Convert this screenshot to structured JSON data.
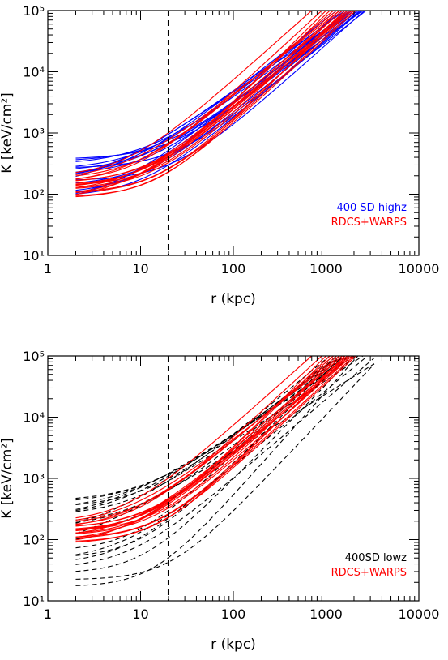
{
  "colors": {
    "blue": "#0000ff",
    "red": "#ff0000",
    "black": "#000000"
  },
  "chart_data": [
    {
      "type": "line",
      "xlabel": "r (kpc)",
      "ylabel": "K [keV/cm²]",
      "xscale": "log",
      "yscale": "log",
      "xlim": [
        1,
        10000
      ],
      "ylim": [
        10,
        100000
      ],
      "x_ticks": [
        "1",
        "10",
        "100",
        "1000",
        "10000"
      ],
      "y_ticks": [
        "10¹",
        "10²",
        "10³",
        "10⁴",
        "10⁵"
      ],
      "vline": {
        "x": 20,
        "style": "dashed",
        "color": "#000000"
      },
      "legend": {
        "position": "bottom-right",
        "entries": [
          {
            "label": "400 SD highz",
            "color": "#0000ff"
          },
          {
            "label": "RDCS+WARPS",
            "color": "#ff0000"
          }
        ]
      },
      "series": [
        {
          "group": "400 SD highz",
          "color": "#0000ff",
          "style": "solid",
          "curves": [
            {
              "k0": 370,
              "r1": 2000,
              "a": 1.25
            },
            {
              "k0": 340,
              "r1": 1900,
              "a": 1.2
            },
            {
              "k0": 300,
              "r1": 1800,
              "a": 1.15
            },
            {
              "k0": 265,
              "r1": 2400,
              "a": 1.3
            },
            {
              "k0": 250,
              "r1": 1500,
              "a": 1.2
            },
            {
              "k0": 230,
              "r1": 2200,
              "a": 1.15
            },
            {
              "k0": 205,
              "r1": 1700,
              "a": 1.25
            },
            {
              "k0": 190,
              "r1": 2500,
              "a": 1.1
            },
            {
              "k0": 175,
              "r1": 1300,
              "a": 1.2
            },
            {
              "k0": 165,
              "r1": 2600,
              "a": 1.35
            },
            {
              "k0": 150,
              "r1": 1600,
              "a": 1.1
            },
            {
              "k0": 135,
              "r1": 2700,
              "a": 1.2
            },
            {
              "k0": 120,
              "r1": 1900,
              "a": 1.05
            },
            {
              "k0": 100,
              "r1": 2200,
              "a": 1.25
            },
            {
              "k0": 90,
              "r1": 2300,
              "a": 1.3
            },
            {
              "k0": 75,
              "r1": 2400,
              "a": 1.15
            },
            {
              "k0": 70,
              "r1": 1800,
              "a": 1.2
            }
          ]
        },
        {
          "group": "RDCS+WARPS",
          "color": "#ff0000",
          "style": "solid",
          "curves": [
            {
              "k0": 190,
              "r1": 700,
              "a": 1.35
            },
            {
              "k0": 175,
              "r1": 1200,
              "a": 1.3
            },
            {
              "k0": 170,
              "r1": 1400,
              "a": 1.2
            },
            {
              "k0": 160,
              "r1": 900,
              "a": 1.4
            },
            {
              "k0": 155,
              "r1": 1500,
              "a": 1.35
            },
            {
              "k0": 150,
              "r1": 1700,
              "a": 1.3
            },
            {
              "k0": 145,
              "r1": 1300,
              "a": 1.25
            },
            {
              "k0": 140,
              "r1": 1100,
              "a": 1.45
            },
            {
              "k0": 135,
              "r1": 1600,
              "a": 1.4
            },
            {
              "k0": 130,
              "r1": 1800,
              "a": 1.3
            },
            {
              "k0": 125,
              "r1": 1400,
              "a": 1.35
            },
            {
              "k0": 120,
              "r1": 1000,
              "a": 1.5
            },
            {
              "k0": 115,
              "r1": 1900,
              "a": 1.35
            },
            {
              "k0": 110,
              "r1": 1500,
              "a": 1.3
            },
            {
              "k0": 105,
              "r1": 1700,
              "a": 1.45
            },
            {
              "k0": 100,
              "r1": 2000,
              "a": 1.4
            },
            {
              "k0": 95,
              "r1": 1800,
              "a": 1.3
            },
            {
              "k0": 90,
              "r1": 1600,
              "a": 1.5
            },
            {
              "k0": 85,
              "r1": 2100,
              "a": 1.4
            },
            {
              "k0": 80,
              "r1": 1900,
              "a": 1.25
            }
          ]
        }
      ]
    },
    {
      "type": "line",
      "xlabel": "r (kpc)",
      "ylabel": "K [keV/cm²]",
      "xscale": "log",
      "yscale": "log",
      "xlim": [
        1,
        10000
      ],
      "ylim": [
        10,
        100000
      ],
      "x_ticks": [
        "1",
        "10",
        "100",
        "1000",
        "10000"
      ],
      "y_ticks": [
        "10¹",
        "10²",
        "10³",
        "10⁴",
        "10⁵"
      ],
      "vline": {
        "x": 20,
        "style": "dashed",
        "color": "#000000"
      },
      "legend": {
        "position": "bottom-right",
        "entries": [
          {
            "label": "400SD lowz",
            "color": "#000000"
          },
          {
            "label": "RDCS+WARPS",
            "color": "#ff0000"
          }
        ]
      },
      "series": [
        {
          "group": "400SD lowz",
          "color": "#000000",
          "style": "dashed",
          "curves": [
            {
              "k0": 420,
              "r1": 1400,
              "a": 1.15
            },
            {
              "k0": 380,
              "r1": 1600,
              "a": 1.1
            },
            {
              "k0": 330,
              "r1": 1300,
              "a": 1.2
            },
            {
              "k0": 300,
              "r1": 1800,
              "a": 1.05
            },
            {
              "k0": 250,
              "r1": 1100,
              "a": 1.25
            },
            {
              "k0": 230,
              "r1": 1500,
              "a": 1.1
            },
            {
              "k0": 210,
              "r1": 2000,
              "a": 1.0
            },
            {
              "k0": 185,
              "r1": 1200,
              "a": 1.3
            },
            {
              "k0": 160,
              "r1": 1700,
              "a": 1.2
            },
            {
              "k0": 130,
              "r1": 1400,
              "a": 1.35
            },
            {
              "k0": 105,
              "r1": 2500,
              "a": 1.0
            },
            {
              "k0": 85,
              "r1": 1600,
              "a": 1.3
            },
            {
              "k0": 65,
              "r1": 1300,
              "a": 1.45
            },
            {
              "k0": 50,
              "r1": 1500,
              "a": 1.5
            },
            {
              "k0": 40,
              "r1": 1800,
              "a": 1.4
            },
            {
              "k0": 33,
              "r1": 3500,
              "a": 1.3
            },
            {
              "k0": 28,
              "r1": 2000,
              "a": 1.55
            },
            {
              "k0": 22,
              "r1": 4000,
              "a": 1.6
            },
            {
              "k0": 17,
              "r1": 2200,
              "a": 1.7
            },
            {
              "k0": 45,
              "r1": 2800,
              "a": 1.25
            },
            {
              "k0": 60,
              "r1": 4500,
              "a": 0.95
            }
          ]
        },
        {
          "group": "RDCS+WARPS",
          "color": "#ff0000",
          "style": "solid",
          "curves": [
            {
              "k0": 190,
              "r1": 700,
              "a": 1.35
            },
            {
              "k0": 175,
              "r1": 1200,
              "a": 1.3
            },
            {
              "k0": 170,
              "r1": 1400,
              "a": 1.2
            },
            {
              "k0": 160,
              "r1": 900,
              "a": 1.4
            },
            {
              "k0": 155,
              "r1": 1500,
              "a": 1.35
            },
            {
              "k0": 150,
              "r1": 1700,
              "a": 1.3
            },
            {
              "k0": 145,
              "r1": 1300,
              "a": 1.25
            },
            {
              "k0": 140,
              "r1": 1100,
              "a": 1.45
            },
            {
              "k0": 135,
              "r1": 1600,
              "a": 1.4
            },
            {
              "k0": 130,
              "r1": 1800,
              "a": 1.3
            },
            {
              "k0": 125,
              "r1": 1400,
              "a": 1.35
            },
            {
              "k0": 120,
              "r1": 1000,
              "a": 1.5
            },
            {
              "k0": 115,
              "r1": 1900,
              "a": 1.35
            },
            {
              "k0": 110,
              "r1": 1500,
              "a": 1.3
            },
            {
              "k0": 105,
              "r1": 1700,
              "a": 1.45
            },
            {
              "k0": 100,
              "r1": 2000,
              "a": 1.4
            },
            {
              "k0": 95,
              "r1": 1800,
              "a": 1.3
            },
            {
              "k0": 90,
              "r1": 1600,
              "a": 1.5
            },
            {
              "k0": 85,
              "r1": 2100,
              "a": 1.4
            },
            {
              "k0": 80,
              "r1": 1900,
              "a": 1.25
            }
          ]
        }
      ]
    }
  ]
}
